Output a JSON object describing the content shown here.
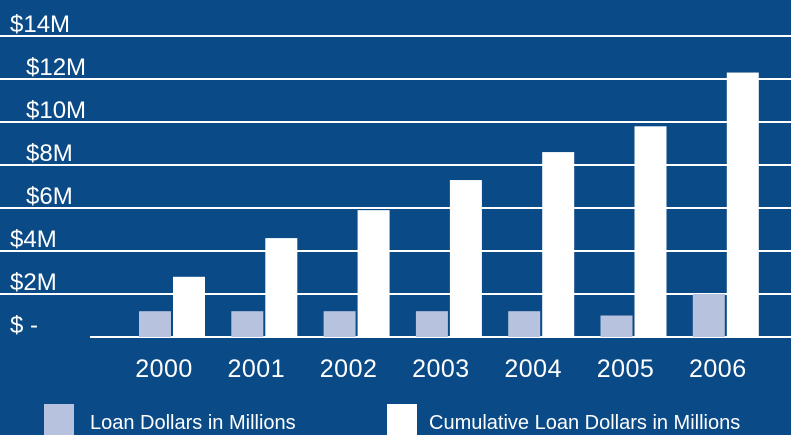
{
  "colors": {
    "background": "#0a4a86",
    "gridline": "#ffffff",
    "loan": "#b7c3de",
    "cumulative": "#ffffff",
    "text": "#ffffff"
  },
  "chart_data": {
    "type": "bar",
    "title": "",
    "xlabel": "",
    "ylabel": "",
    "categories": [
      "2000",
      "2001",
      "2002",
      "2003",
      "2004",
      "2005",
      "2006"
    ],
    "ylim": [
      0,
      14
    ],
    "yticks": [
      0,
      2,
      4,
      6,
      8,
      10,
      12,
      14
    ],
    "ytick_labels": [
      "$ -",
      "$2M",
      "$4M",
      "$6M",
      "$8M",
      "$10M",
      "$12M",
      "$14M"
    ],
    "grid": true,
    "legend_position": "bottom",
    "series": [
      {
        "name": "Loan Dollars in Millions",
        "color": "#b7c3de",
        "values": [
          1.2,
          1.2,
          1.2,
          1.2,
          1.2,
          1.0,
          2.0
        ]
      },
      {
        "name": "Cumulative Loan Dollars in Millions",
        "color": "#ffffff",
        "values": [
          2.8,
          4.6,
          5.9,
          7.3,
          8.6,
          9.8,
          12.3
        ]
      }
    ]
  }
}
